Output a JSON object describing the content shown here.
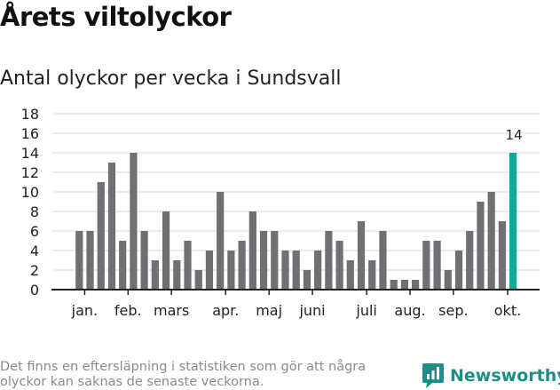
{
  "header": {
    "title": "Årets viltolyckor",
    "subtitle": "Antal olyckor per vecka i Sundsvall"
  },
  "footer": {
    "note": "Det finns en eftersläpning i statistiken som gör att några olyckor kan saknas de senaste veckorna.",
    "brand": "Newsworthy",
    "logo_icon": "newsworthy-chart-bubble-icon"
  },
  "colors": {
    "bar": "#706f73",
    "highlight": "#13a89e",
    "grid": "#d9d9d9",
    "axis": "#222222",
    "brand": "#1d8f86"
  },
  "chart_data": {
    "type": "bar",
    "title": "Antal olyckor per vecka i Sundsvall",
    "xlabel": "",
    "ylabel": "",
    "ylim": [
      0,
      18
    ],
    "yticks": [
      0,
      2,
      4,
      6,
      8,
      10,
      12,
      14,
      16,
      18
    ],
    "grid": true,
    "weeks": [
      1,
      2,
      3,
      4,
      5,
      6,
      7,
      8,
      9,
      10,
      11,
      12,
      13,
      14,
      15,
      16,
      17,
      18,
      19,
      20,
      21,
      22,
      23,
      24,
      25,
      26,
      27,
      28,
      29,
      30,
      31,
      32,
      33,
      34,
      35,
      36,
      37,
      38,
      39,
      40,
      41
    ],
    "values": [
      6,
      6,
      11,
      13,
      5,
      14,
      6,
      3,
      8,
      3,
      5,
      2,
      4,
      10,
      4,
      5,
      8,
      6,
      6,
      4,
      4,
      2,
      4,
      6,
      5,
      3,
      7,
      3,
      6,
      1,
      1,
      1,
      5,
      5,
      2,
      4,
      6,
      9,
      10,
      7,
      14
    ],
    "highlight_index": 40,
    "highlight_label": "14",
    "month_ticks": [
      {
        "label": "jan.",
        "week": 1.5
      },
      {
        "label": "feb.",
        "week": 5.5
      },
      {
        "label": "mars",
        "week": 9.5
      },
      {
        "label": "apr.",
        "week": 14.5
      },
      {
        "label": "maj",
        "week": 18.5
      },
      {
        "label": "juni",
        "week": 22.5
      },
      {
        "label": "juli",
        "week": 27.5
      },
      {
        "label": "aug.",
        "week": 31.5
      },
      {
        "label": "sep.",
        "week": 35.5
      },
      {
        "label": "okt.",
        "week": 40.5
      }
    ]
  }
}
